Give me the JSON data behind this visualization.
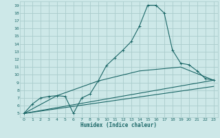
{
  "xlabel": "Humidex (Indice chaleur)",
  "bg_color": "#cde8e8",
  "grid_color": "#aacccc",
  "line_color": "#1a6666",
  "xlim": [
    -0.5,
    23.5
  ],
  "ylim": [
    4.5,
    19.5
  ],
  "xticks": [
    0,
    1,
    2,
    3,
    4,
    5,
    6,
    7,
    8,
    9,
    10,
    11,
    12,
    13,
    14,
    15,
    16,
    17,
    18,
    19,
    20,
    21,
    22,
    23
  ],
  "yticks": [
    5,
    6,
    7,
    8,
    9,
    10,
    11,
    12,
    13,
    14,
    15,
    16,
    17,
    18,
    19
  ],
  "line1_x": [
    0,
    1,
    2,
    3,
    4,
    5,
    6,
    7,
    8,
    9,
    10,
    11,
    12,
    13,
    14,
    15,
    16,
    17,
    18,
    19,
    20,
    21,
    22,
    23
  ],
  "line1_y": [
    5.0,
    6.2,
    7.0,
    7.2,
    7.3,
    7.2,
    5.0,
    7.0,
    7.5,
    9.2,
    11.2,
    12.2,
    13.2,
    14.3,
    16.3,
    19.0,
    19.0,
    18.0,
    13.2,
    11.5,
    11.3,
    10.5,
    9.5,
    9.3
  ],
  "line2_x": [
    0,
    23
  ],
  "line2_y": [
    5.0,
    9.3
  ],
  "line3_x": [
    0,
    4,
    9,
    14,
    19,
    23
  ],
  "line3_y": [
    5.0,
    7.3,
    9.2,
    10.5,
    11.0,
    9.3
  ],
  "line4_x": [
    0,
    23
  ],
  "line4_y": [
    5.0,
    8.5
  ]
}
